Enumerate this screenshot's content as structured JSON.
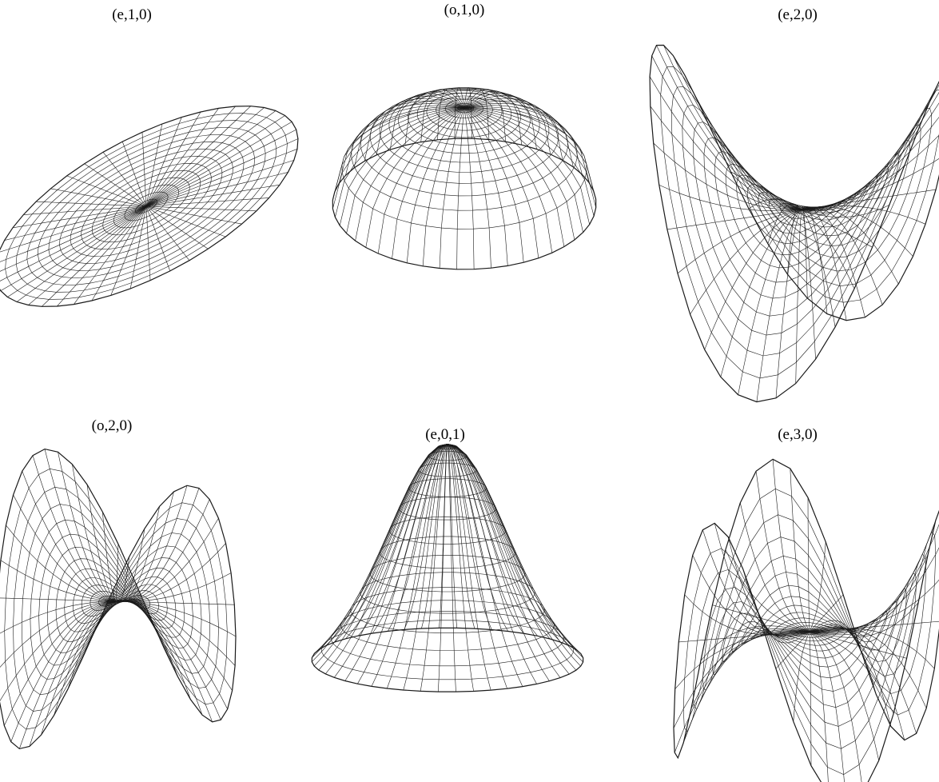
{
  "panels": [
    {
      "label": "(e,1,0)",
      "shape": "flat-ribbon"
    },
    {
      "label": "(o,1,0)",
      "shape": "tilted-ellipsoid"
    },
    {
      "label": "(e,2,0)",
      "shape": "v-saddle"
    },
    {
      "label": "(o,2,0)",
      "shape": "two-lobe-twist"
    },
    {
      "label": "(e,0,1)",
      "shape": "single-peak"
    },
    {
      "label": "(e,3,0)",
      "shape": "monkey-saddle"
    }
  ],
  "style": {
    "stroke": "#1a1a1a",
    "fill": "#ffffff"
  }
}
